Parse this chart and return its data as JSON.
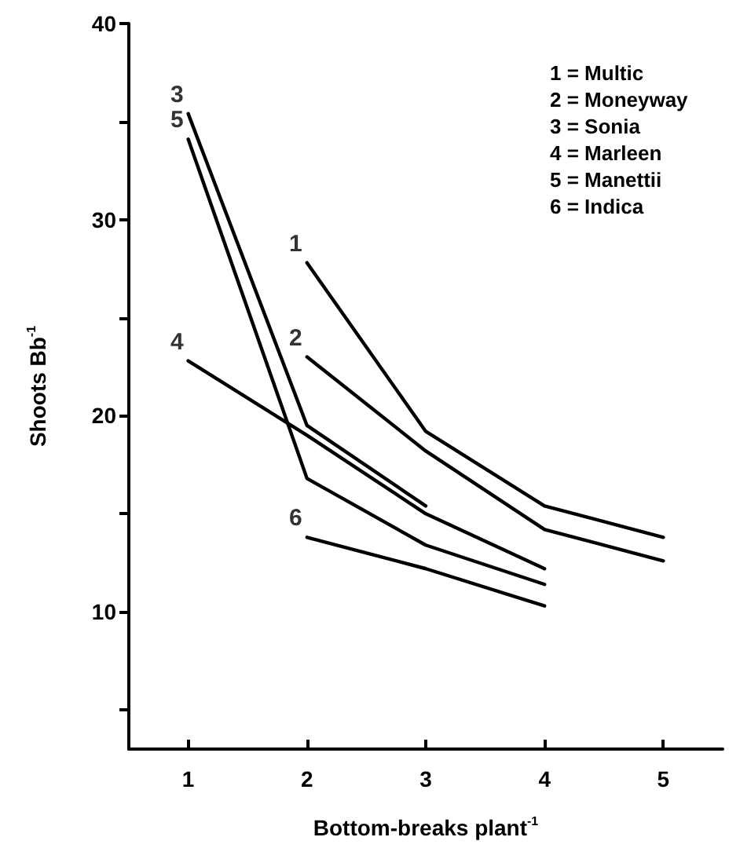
{
  "chart_data": {
    "type": "line",
    "xlabel": "Bottom-breaks plant$^{-1}$",
    "ylabel": "Shoots Bb$^{-1}$",
    "categories": [
      "1",
      "2",
      "3",
      "4",
      "5"
    ],
    "ylim": [
      3,
      40
    ],
    "yticks": [
      {
        "value": 5,
        "label": null
      },
      10,
      {
        "value": 15,
        "label": null
      },
      20,
      {
        "value": 25,
        "label": null
      },
      30,
      {
        "value": 35,
        "label": null
      },
      40
    ],
    "series": [
      {
        "color": "#000000",
        "values": [
          null,
          27.8,
          19.2,
          15.4,
          13.8
        ]
      },
      {
        "color": "#000000",
        "values": [
          null,
          23.0,
          18.2,
          14.2,
          12.6
        ]
      },
      {
        "color": "#000000",
        "values": [
          35.4,
          19.5,
          15.4,
          null,
          null
        ]
      },
      {
        "color": "#000000",
        "values": [
          22.8,
          19.0,
          15.0,
          12.2,
          null
        ]
      },
      {
        "color": "#000000",
        "values": [
          34.1,
          16.8,
          13.4,
          11.4,
          null
        ]
      },
      {
        "color": "#000000",
        "values": [
          null,
          13.8,
          12.2,
          10.3,
          null
        ]
      }
    ],
    "annotations": [
      {
        "text": "1",
        "x": "2",
        "y": 27.8
      },
      {
        "text": "2",
        "x": "2",
        "y": 23.0
      },
      {
        "text": "3",
        "x": "1",
        "y": 35.4
      },
      {
        "text": "4",
        "x": "1",
        "y": 22.8
      },
      {
        "text": "5",
        "x": "1",
        "y": 34.1
      },
      {
        "text": "6",
        "x": "2",
        "y": 13.8
      },
      "1 = Multic",
      "2 = Moneyway",
      "3 = Sonia",
      "4 = Marleen",
      "5 = Manettii",
      "6 = Indica"
    ],
    "grid": false,
    "marker": "none",
    "line_style": "solid"
  }
}
